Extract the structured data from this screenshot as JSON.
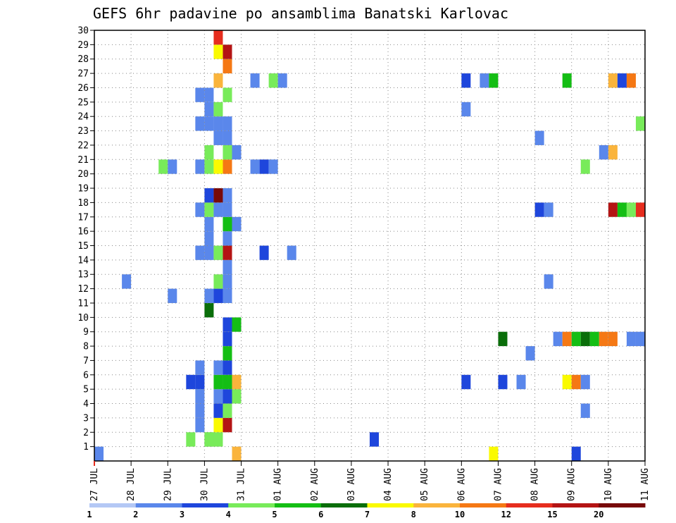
{
  "chart_data": {
    "type": "heatmap",
    "title": "GEFS 6hr padavine po ansamblima Banatski Karlovac",
    "x_tick_labels": [
      "27 JUL",
      "28 JUL",
      "29 JUL",
      "30 JUL",
      "31 JUL",
      "01 AUG",
      "02 AUG",
      "03 AUG",
      "04 AUG",
      "05 AUG",
      "06 AUG",
      "07 AUG",
      "08 AUG",
      "09 AUG",
      "10 AUG",
      "11 AUG"
    ],
    "y_tick_labels": [
      "1",
      "2",
      "3",
      "4",
      "5",
      "6",
      "7",
      "8",
      "9",
      "10",
      "11",
      "12",
      "13",
      "14",
      "15",
      "16",
      "17",
      "18",
      "19",
      "20",
      "21",
      "22",
      "23",
      "24",
      "25",
      "26",
      "27",
      "28",
      "29",
      "30"
    ],
    "xlim_steps": [
      0,
      60
    ],
    "ylim_members": [
      0,
      30
    ],
    "grid": true,
    "legend_placement": "bottom",
    "legend_labels": [
      "1",
      "2",
      "3",
      "4",
      "5",
      "6",
      "7",
      "8",
      "10",
      "12",
      "15",
      "20"
    ],
    "colors": [
      "#b4c8f5",
      "#5a87eb",
      "#1e46dc",
      "#78eb5a",
      "#14be14",
      "#0a6e0a",
      "#fafa00",
      "#fab43c",
      "#f57814",
      "#e62d1e",
      "#b41414",
      "#780a0a"
    ],
    "cells": [
      [
        0,
        1,
        1
      ],
      [
        15,
        1,
        7
      ],
      [
        43,
        1,
        6
      ],
      [
        52,
        1,
        2
      ],
      [
        10,
        2,
        3
      ],
      [
        12,
        2,
        3
      ],
      [
        12,
        2,
        3
      ],
      [
        13,
        2,
        3
      ],
      [
        30,
        2,
        2
      ],
      [
        13,
        3,
        6
      ],
      [
        14,
        3,
        10
      ],
      [
        11,
        3,
        1
      ],
      [
        11,
        4,
        1
      ],
      [
        13,
        4,
        2
      ],
      [
        14,
        4,
        3
      ],
      [
        53,
        4,
        1
      ],
      [
        11,
        5,
        1
      ],
      [
        13,
        5,
        1
      ],
      [
        14,
        5,
        2
      ],
      [
        15,
        5,
        3
      ],
      [
        10,
        6,
        2
      ],
      [
        11,
        6,
        2
      ],
      [
        14,
        6,
        4
      ],
      [
        15,
        6,
        7
      ],
      [
        13,
        6,
        4
      ],
      [
        40,
        6,
        2
      ],
      [
        44,
        6,
        2
      ],
      [
        46,
        6,
        1
      ],
      [
        51,
        6,
        6
      ],
      [
        52,
        6,
        8
      ],
      [
        53,
        6,
        1
      ],
      [
        60,
        6,
        1
      ],
      [
        11,
        7,
        1
      ],
      [
        13,
        7,
        1
      ],
      [
        14,
        7,
        2
      ],
      [
        14,
        8,
        4
      ],
      [
        47,
        8,
        1
      ],
      [
        14,
        9,
        2
      ],
      [
        44,
        9,
        5
      ],
      [
        50,
        9,
        1
      ],
      [
        51,
        9,
        8
      ],
      [
        52,
        9,
        4
      ],
      [
        53,
        9,
        5
      ],
      [
        54,
        9,
        4
      ],
      [
        55,
        9,
        8
      ],
      [
        56,
        9,
        8
      ],
      [
        58,
        9,
        1
      ],
      [
        59,
        9,
        1
      ],
      [
        14,
        10,
        2
      ],
      [
        15,
        10,
        4
      ],
      [
        12,
        11,
        5
      ],
      [
        8,
        12,
        1
      ],
      [
        12,
        12,
        1
      ],
      [
        14,
        12,
        1
      ],
      [
        13,
        12,
        2
      ],
      [
        3,
        13,
        1
      ],
      [
        14,
        13,
        1
      ],
      [
        13,
        13,
        3
      ],
      [
        49,
        13,
        1
      ],
      [
        14,
        14,
        1
      ],
      [
        11,
        15,
        1
      ],
      [
        12,
        15,
        1
      ],
      [
        14,
        15,
        10
      ],
      [
        13,
        15,
        3
      ],
      [
        18,
        15,
        2
      ],
      [
        21,
        15,
        1
      ],
      [
        12,
        16,
        1
      ],
      [
        14,
        16,
        1
      ],
      [
        12,
        17,
        1
      ],
      [
        14,
        17,
        4
      ],
      [
        15,
        17,
        1
      ],
      [
        11,
        18,
        1
      ],
      [
        12,
        18,
        3
      ],
      [
        14,
        18,
        1
      ],
      [
        13,
        18,
        1
      ],
      [
        48,
        18,
        2
      ],
      [
        49,
        18,
        1
      ],
      [
        56,
        18,
        10
      ],
      [
        57,
        18,
        4
      ],
      [
        58,
        18,
        3
      ],
      [
        59,
        18,
        9
      ],
      [
        12,
        19,
        2
      ],
      [
        14,
        19,
        1
      ],
      [
        13,
        19,
        11
      ],
      [
        7,
        21,
        3
      ],
      [
        8,
        21,
        1
      ],
      [
        11,
        21,
        1
      ],
      [
        12,
        21,
        3
      ],
      [
        14,
        21,
        8
      ],
      [
        13,
        21,
        6
      ],
      [
        17,
        21,
        1
      ],
      [
        18,
        21,
        2
      ],
      [
        19,
        21,
        1
      ],
      [
        53,
        21,
        3
      ],
      [
        12,
        22,
        3
      ],
      [
        14,
        22,
        3
      ],
      [
        15,
        22,
        1
      ],
      [
        55,
        22,
        1
      ],
      [
        56,
        22,
        7
      ],
      [
        13,
        23,
        1
      ],
      [
        14,
        23,
        1
      ],
      [
        48,
        23,
        1
      ],
      [
        11,
        24,
        1
      ],
      [
        12,
        24,
        1
      ],
      [
        13,
        24,
        1
      ],
      [
        14,
        24,
        1
      ],
      [
        59,
        24,
        3
      ],
      [
        12,
        25,
        1
      ],
      [
        13,
        25,
        3
      ],
      [
        40,
        25,
        1
      ],
      [
        11,
        26,
        1
      ],
      [
        12,
        26,
        1
      ],
      [
        14,
        26,
        3
      ],
      [
        13,
        27,
        7
      ],
      [
        17,
        27,
        1
      ],
      [
        19,
        27,
        3
      ],
      [
        20,
        27,
        1
      ],
      [
        40,
        27,
        2
      ],
      [
        42,
        27,
        1
      ],
      [
        43,
        27,
        4
      ],
      [
        51,
        27,
        4
      ],
      [
        56,
        27,
        7
      ],
      [
        57,
        27,
        2
      ],
      [
        58,
        27,
        8
      ],
      [
        14,
        28,
        8
      ],
      [
        14,
        29,
        10
      ],
      [
        13,
        29,
        6
      ],
      [
        13,
        30,
        9
      ]
    ]
  }
}
